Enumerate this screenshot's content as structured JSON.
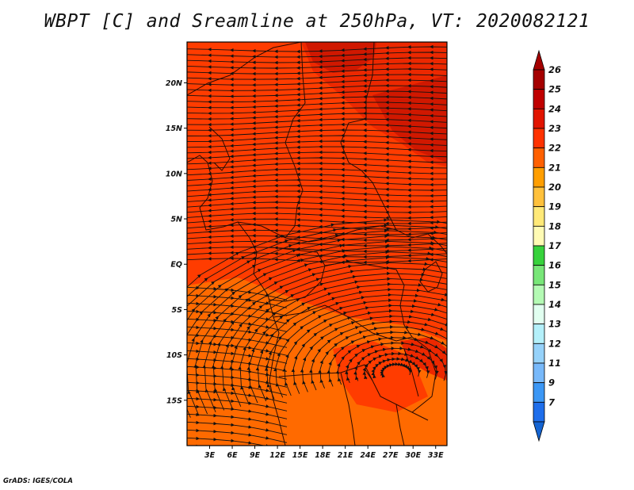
{
  "title": "WBPT [C] and Sreamline at 250hPa, VT: 2020082121",
  "credit": "GrADS: IGES/COLA",
  "map": {
    "lat_range": [
      -20,
      24.5
    ],
    "lon_range": [
      0,
      34.5
    ],
    "lat_ticks": [
      {
        "value": 20,
        "label": "20N"
      },
      {
        "value": 15,
        "label": "15N"
      },
      {
        "value": 10,
        "label": "10N"
      },
      {
        "value": 5,
        "label": "5N"
      },
      {
        "value": 0,
        "label": "EQ"
      },
      {
        "value": -5,
        "label": "5S"
      },
      {
        "value": -10,
        "label": "10S"
      },
      {
        "value": -15,
        "label": "15S"
      }
    ],
    "lon_ticks": [
      {
        "value": 3,
        "label": "3E"
      },
      {
        "value": 6,
        "label": "6E"
      },
      {
        "value": 9,
        "label": "9E"
      },
      {
        "value": 12,
        "label": "12E"
      },
      {
        "value": 15,
        "label": "15E"
      },
      {
        "value": 18,
        "label": "18E"
      },
      {
        "value": 21,
        "label": "21E"
      },
      {
        "value": 24,
        "label": "24E"
      },
      {
        "value": 27,
        "label": "27E"
      },
      {
        "value": 30,
        "label": "30E"
      },
      {
        "value": 33,
        "label": "33E"
      }
    ]
  },
  "colorbar": {
    "levels": [
      {
        "label": "26",
        "color": "#a50000"
      },
      {
        "label": "25",
        "color": "#c00000"
      },
      {
        "label": "24",
        "color": "#e11400"
      },
      {
        "label": "23",
        "color": "#ff3200"
      },
      {
        "label": "22",
        "color": "#ff6000"
      },
      {
        "label": "21",
        "color": "#ff9e00"
      },
      {
        "label": "20",
        "color": "#ffc13c"
      },
      {
        "label": "19",
        "color": "#ffe978"
      },
      {
        "label": "18",
        "color": "#fffbb4"
      },
      {
        "label": "17",
        "color": "#37d23c"
      },
      {
        "label": "16",
        "color": "#78e678"
      },
      {
        "label": "15",
        "color": "#b4fab4"
      },
      {
        "label": "14",
        "color": "#e1fff0"
      },
      {
        "label": "13",
        "color": "#b4f0fa"
      },
      {
        "label": "12",
        "color": "#96d2fa"
      },
      {
        "label": "11",
        "color": "#78b9fa"
      },
      {
        "label": "9",
        "color": "#3c97f5"
      },
      {
        "label": "7",
        "color": "#1e6eeb"
      }
    ],
    "bottom_color": "#1464d2"
  },
  "field_colors": {
    "w23": "#ff3c00",
    "w24": "#ec2800",
    "w25": "#d01800",
    "w22": "#ff6a00"
  }
}
